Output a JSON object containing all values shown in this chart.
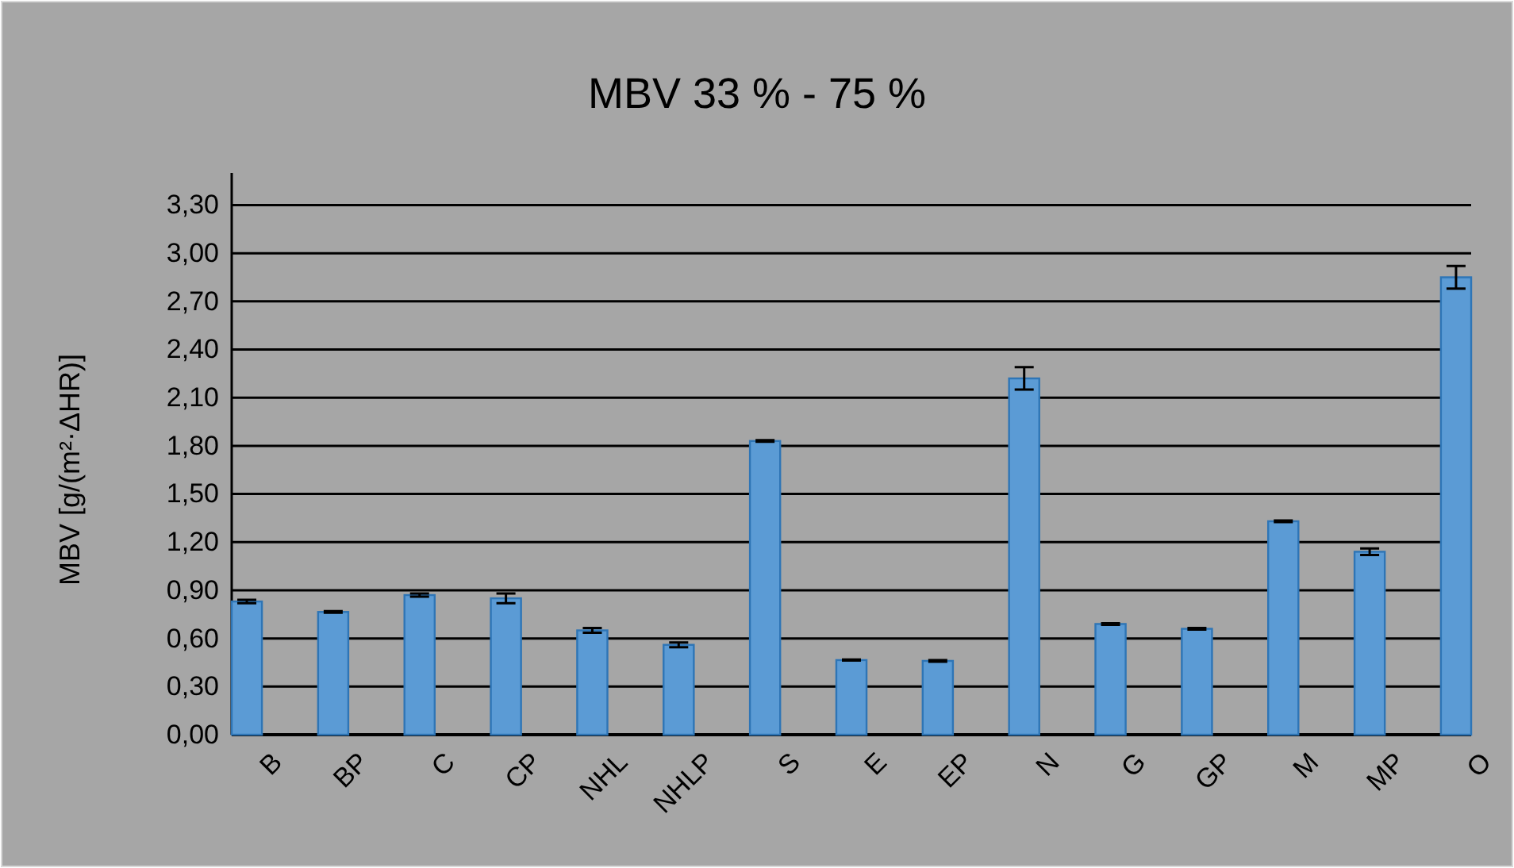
{
  "chart_data": {
    "type": "bar",
    "title": "MBV  33 % - 75 %",
    "ylabel": "MBV [g/(m²·ΔHR)]",
    "categories": [
      "B",
      "BP",
      "C",
      "CP",
      "NHL",
      "NHLP",
      "S",
      "E",
      "EP",
      "N",
      "G",
      "GP",
      "M",
      "MP",
      "O"
    ],
    "values": [
      0.83,
      0.765,
      0.87,
      0.85,
      0.65,
      0.56,
      1.83,
      0.465,
      0.46,
      2.22,
      0.69,
      0.66,
      1.33,
      1.14,
      2.85
    ],
    "errors": [
      0.01,
      0.005,
      0.01,
      0.03,
      0.015,
      0.015,
      0.005,
      0.003,
      0.005,
      0.07,
      0.005,
      0.005,
      0.005,
      0.02,
      0.07
    ],
    "color": "#5b9bd5",
    "ylim": [
      0,
      3.5
    ],
    "yticks": [
      {
        "value": 0,
        "label": "0,00"
      },
      {
        "value": 0.3,
        "label": "0,30"
      },
      {
        "value": 0.6,
        "label": "0,60"
      },
      {
        "value": 0.9,
        "label": "0,90"
      },
      {
        "value": 1.2,
        "label": "1,20"
      },
      {
        "value": 1.5,
        "label": "1,50"
      },
      {
        "value": 1.8,
        "label": "1,80"
      },
      {
        "value": 2.1,
        "label": "2,10"
      },
      {
        "value": 2.4,
        "label": "2,40"
      },
      {
        "value": 2.7,
        "label": "2,70"
      },
      {
        "value": 3.0,
        "label": "3,00"
      },
      {
        "value": 3.3,
        "label": "3,30"
      }
    ],
    "grid": "y"
  }
}
